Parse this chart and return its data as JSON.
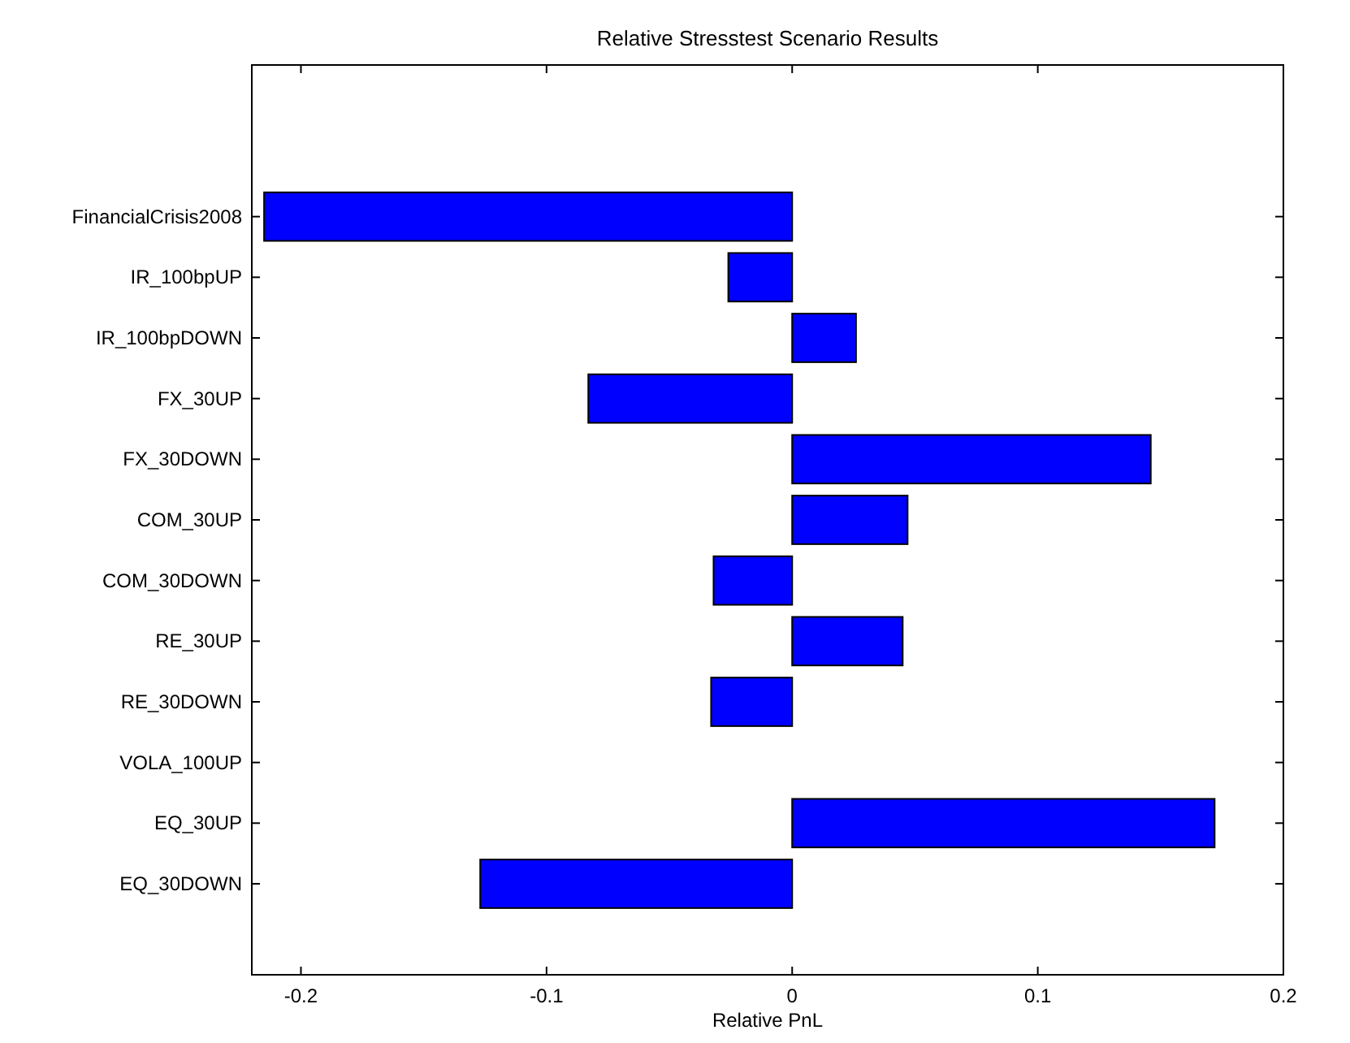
{
  "chart_data": {
    "type": "bar",
    "orientation": "horizontal",
    "title": "Relative Stresstest Scenario Results",
    "xlabel": "Relative PnL",
    "categories": [
      "FinancialCrisis2008",
      "IR_100bpUP",
      "IR_100bpDOWN",
      "FX_30UP",
      "FX_30DOWN",
      "COM_30UP",
      "COM_30DOWN",
      "RE_30UP",
      "RE_30DOWN",
      "VOLA_100UP",
      "EQ_30UP",
      "EQ_30DOWN"
    ],
    "values": [
      -0.215,
      -0.026,
      0.026,
      -0.083,
      0.146,
      0.047,
      -0.032,
      0.045,
      -0.033,
      0,
      0.172,
      -0.127
    ],
    "color": "#0000ff",
    "xlim": [
      -0.22,
      0.2
    ],
    "xticks": [
      -0.2,
      -0.1,
      0,
      0.1,
      0.2
    ],
    "grid": false
  }
}
